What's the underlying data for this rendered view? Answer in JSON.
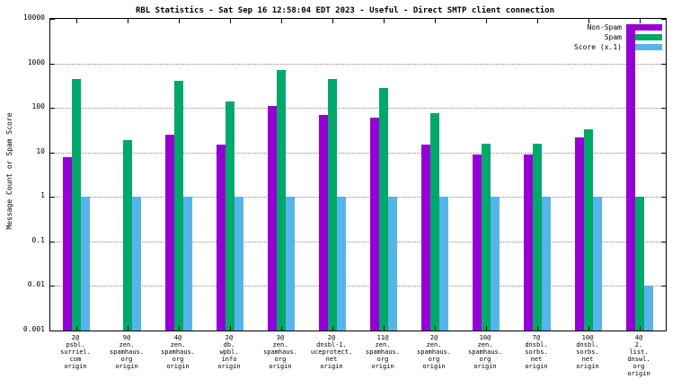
{
  "title": "RBL Statistics - Sat Sep 16 12:58:04 EDT 2023 - Useful - Direct SMTP client connection",
  "ylabel": "Message Count or Spam Score",
  "chart_data": {
    "type": "bar",
    "log_scale": true,
    "ylim": [
      0.001,
      10000
    ],
    "y_ticks": [
      10000,
      1000,
      100,
      10,
      1,
      0.1,
      0.01,
      0.001
    ],
    "grid": "dotted horizontal at decades",
    "legend_position": "top-right inside plot",
    "categories": [
      "2@\npsbl.\nsurriel.\ncom\norigin",
      "9@\nzen.\nspamhaus.\norg\norigin",
      "4@\nzen.\nspamhaus.\norg\norigin",
      "2@\ndb.\nwpbl.\ninfo\norigin",
      "3@\nzen.\nspamhaus.\norg\norigin",
      "2@\ndnsbl-1.\nuceprotect.\nnet\norigin",
      "11@\nzen.\nspamhaus.\norg\norigin",
      "2@\nzen.\nspamhaus.\norg\norigin",
      "10@\nzen.\nspamhaus.\norg\norigin",
      "7@\ndnsbl.\nsorbs.\nnet\norigin",
      "10@\ndnsbl.\nsorbs.\nnet\norigin",
      "4@\n2.\nlist.\ndnswl.\norg\norigin"
    ],
    "series": [
      {
        "name": "Non-Spam",
        "color": "#9400d3",
        "values": [
          8,
          null,
          25,
          15,
          110,
          70,
          60,
          15,
          9,
          9,
          22,
          7000
        ]
      },
      {
        "name": "Spam",
        "color": "#00a86b",
        "values": [
          450,
          19,
          400,
          140,
          700,
          450,
          280,
          75,
          16,
          16,
          33,
          1
        ]
      },
      {
        "name": "Score (x.1)",
        "color": "#56b4e9",
        "values": [
          1,
          1,
          1,
          1,
          1,
          1,
          1,
          1,
          1,
          1,
          1,
          0.01
        ]
      }
    ]
  }
}
